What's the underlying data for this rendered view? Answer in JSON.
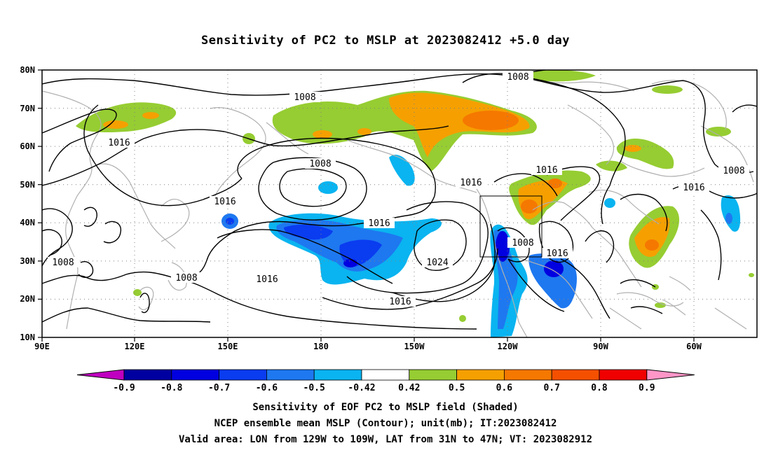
{
  "title": "Sensitivity of PC2 to MSLP at 2023082412 +5.0 day",
  "map": {
    "lat_labels": [
      "80N",
      "70N",
      "60N",
      "50N",
      "40N",
      "30N",
      "20N",
      "10N"
    ],
    "lon_labels": [
      "90E",
      "120E",
      "150E",
      "180",
      "150W",
      "120W",
      "90W",
      "60W"
    ],
    "lon_range": [
      "90E",
      "45W"
    ],
    "lat_range": [
      "10N",
      "80N"
    ],
    "grid": "dotted",
    "coastlines_color": "#b0b0b0",
    "contour_color": "#000000",
    "contour_labels": [
      "1008",
      "1008",
      "1016",
      "1008",
      "1016",
      "1016",
      "1016",
      "1016",
      "1008",
      "1016",
      "1008",
      "1024",
      "1008",
      "1016",
      "1008",
      "1016",
      "1016"
    ],
    "valid_box": {
      "lon_from": "129W",
      "lon_to": "109W",
      "lat_from": "31N",
      "lat_to": "47N"
    }
  },
  "colorbar": {
    "labels": [
      "-0.9",
      "-0.8",
      "-0.7",
      "-0.6",
      "-0.5",
      "-0.42",
      "0.42",
      "0.5",
      "0.6",
      "0.7",
      "0.8",
      "0.9"
    ],
    "colors": [
      "#c000c0",
      "#0000a0",
      "#0000e0",
      "#0a3cf0",
      "#1e78f0",
      "#0ab4f0",
      "#ffffff",
      "#96cd32",
      "#f5a000",
      "#f57800",
      "#f55000",
      "#f00000",
      "#ff96c8"
    ]
  },
  "footer": {
    "line1": "Sensitivity of EOF PC2 to MSLP field (Shaded)",
    "line2": "NCEP ensemble mean MSLP (Contour); unit(mb); IT:2023082412",
    "line3": "Valid area: LON from 129W to 109W, LAT from 31N to 47N; VT: 2023082912"
  }
}
